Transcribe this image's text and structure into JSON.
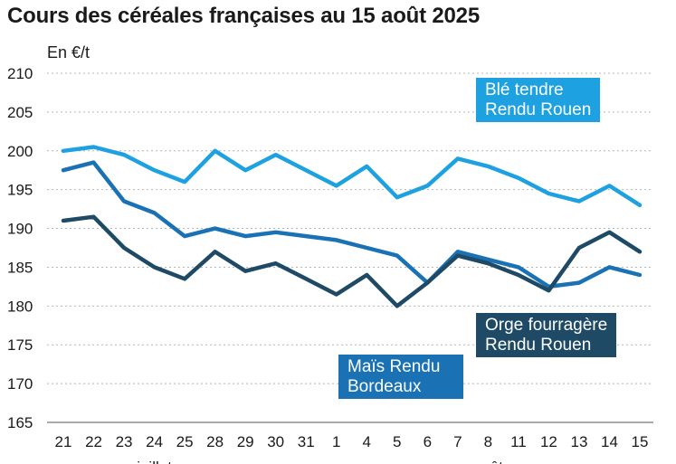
{
  "chart_data": {
    "type": "line",
    "title": "Cours des céréales françaises au 15 août 2025",
    "ylabel": "En €/t",
    "xlabel": "",
    "ylim": [
      165,
      210
    ],
    "yticks": [
      165,
      170,
      175,
      180,
      185,
      190,
      195,
      200,
      205,
      210
    ],
    "grid": true,
    "categories": [
      "21",
      "22",
      "23",
      "24",
      "25",
      "28",
      "29",
      "30",
      "31",
      "1",
      "4",
      "5",
      "6",
      "7",
      "8",
      "11",
      "12",
      "13",
      "14",
      "15"
    ],
    "month_labels": [
      {
        "label": "juillet",
        "at_index": 3
      },
      {
        "label": "août",
        "at_index": 14
      }
    ],
    "series": [
      {
        "name_lines": [
          "Blé tendre",
          "Rendu Rouen"
        ],
        "color": "#1ea1e0",
        "values": [
          200,
          200.5,
          199.5,
          197.5,
          196,
          200,
          197.5,
          199.5,
          197.5,
          195.5,
          198,
          194,
          195.5,
          199,
          198,
          196.5,
          194.5,
          193.5,
          195.5,
          193
        ]
      },
      {
        "name_lines": [
          "Maïs Rendu",
          "Bordeaux"
        ],
        "color": "#1a72b5",
        "values": [
          197.5,
          198.5,
          193.5,
          192,
          189,
          190,
          189,
          189.5,
          189,
          188.5,
          187.5,
          186.5,
          183,
          187,
          186,
          185,
          182.5,
          183,
          185,
          184
        ]
      },
      {
        "name_lines": [
          "Orge fourragère",
          "Rendu Rouen"
        ],
        "color": "#1e4a66",
        "values": [
          191,
          191.5,
          187.5,
          185,
          183.5,
          187,
          184.5,
          185.5,
          183.5,
          181.5,
          184,
          180,
          183,
          186.5,
          185.5,
          184,
          182,
          187.5,
          189.5,
          187
        ]
      }
    ]
  }
}
